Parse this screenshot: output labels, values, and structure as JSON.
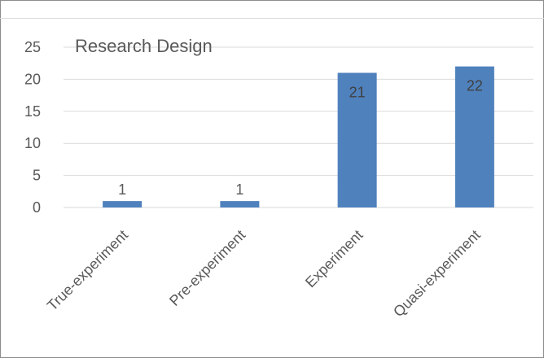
{
  "chart_data": {
    "type": "bar",
    "title": "Research Design",
    "categories": [
      "True-experiment",
      "Pre-experiment",
      "Experiment",
      "Quasi-experiment"
    ],
    "values": [
      1,
      1,
      21,
      22
    ],
    "ylim": [
      0,
      25
    ],
    "yticks": [
      0,
      5,
      10,
      15,
      20,
      25
    ],
    "xlabel": "",
    "ylabel": "",
    "grid": true,
    "legend": false,
    "bar_color": "#4f81bd",
    "gridline_color": "#d9d9d9",
    "text_color": "#595959"
  }
}
